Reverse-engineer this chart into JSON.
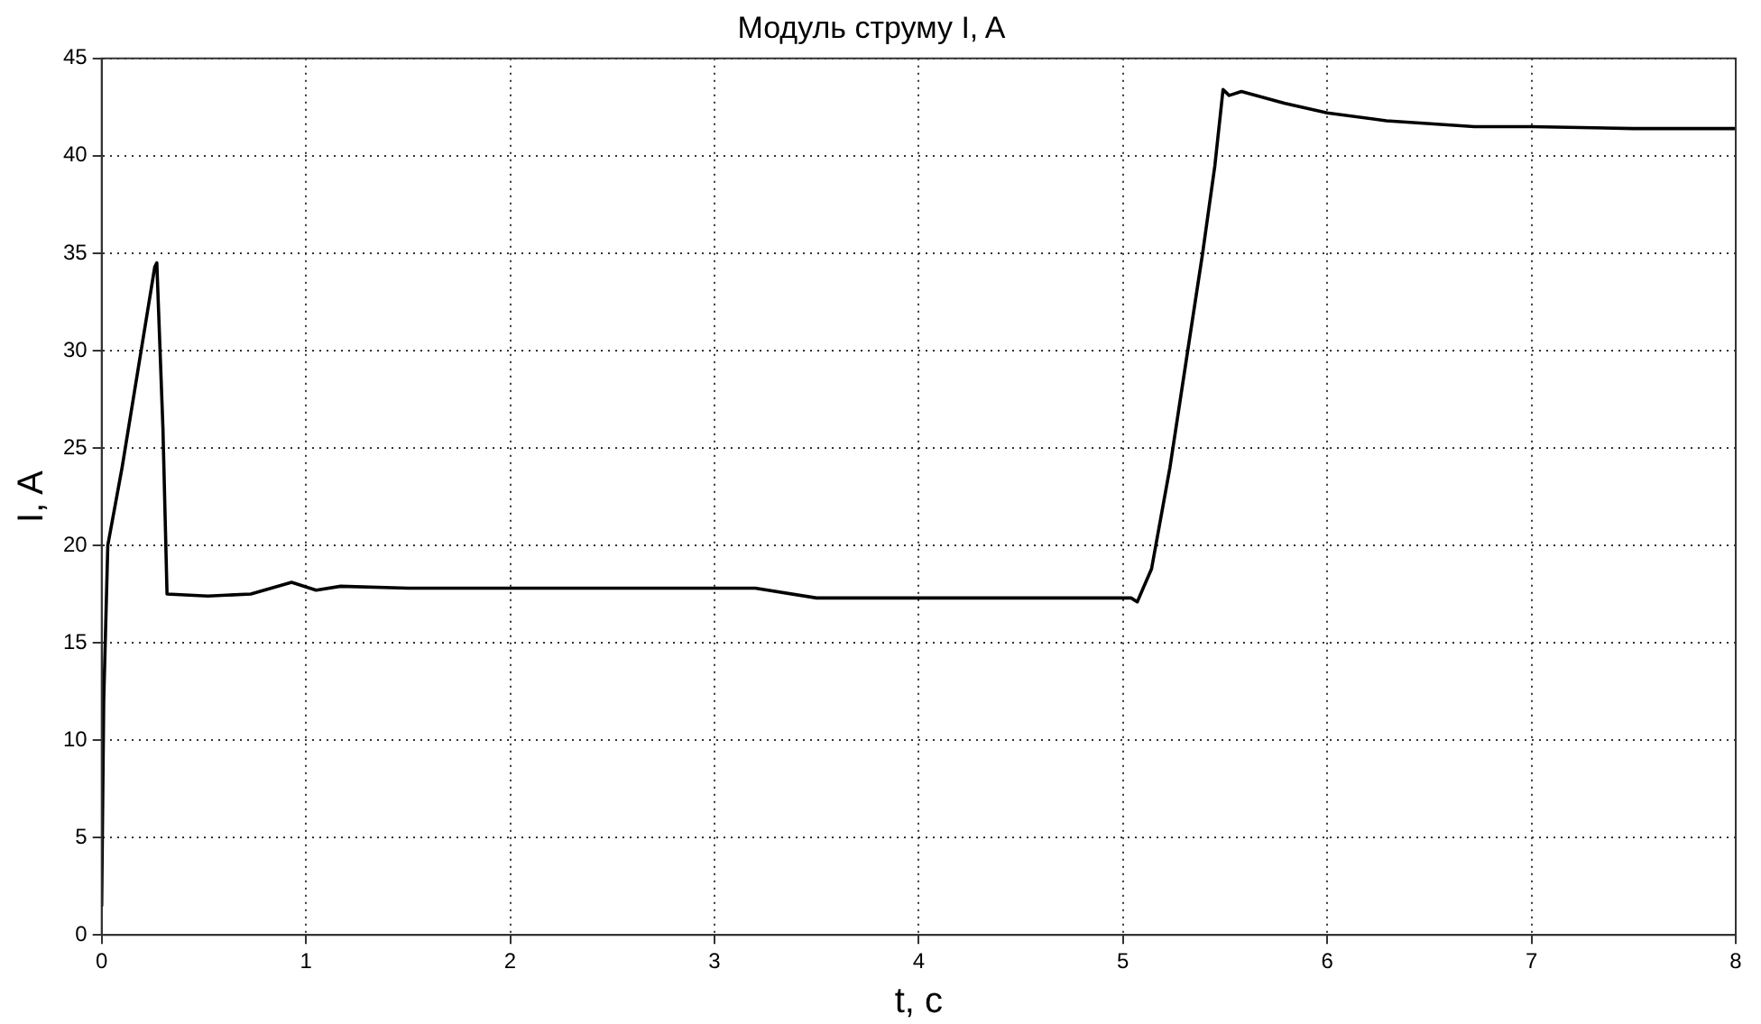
{
  "chart_data": {
    "type": "line",
    "title": "Модуль струму I, A",
    "xlabel": "t, c",
    "ylabel": "I, A",
    "series": [
      {
        "color": "#000000",
        "x": [
          0,
          0.01,
          0.03,
          0.1,
          0.26,
          0.27,
          0.3,
          0.32,
          0.52,
          0.73,
          0.93,
          1.05,
          1.17,
          1.5,
          2,
          3,
          3.2,
          3.5,
          4,
          5,
          5.04,
          5.07,
          5.14,
          5.23,
          5.32,
          5.39,
          5.45,
          5.49,
          5.52,
          5.58,
          5.79,
          6,
          6.29,
          6.72,
          7,
          7.5,
          8
        ],
        "values": [
          1.5,
          12,
          20,
          24,
          34.3,
          34.5,
          26,
          17.5,
          17.4,
          17.5,
          18.1,
          17.7,
          17.9,
          17.8,
          17.8,
          17.8,
          17.8,
          17.3,
          17.3,
          17.3,
          17.3,
          17.1,
          18.8,
          24,
          30.2,
          35,
          39.5,
          43.4,
          43.1,
          43.3,
          42.7,
          42.2,
          41.8,
          41.5,
          41.5,
          41.4,
          41.4
        ]
      }
    ],
    "xlim": [
      0,
      8
    ],
    "xticks": [
      0,
      1,
      2,
      3,
      4,
      5,
      6,
      7,
      8
    ],
    "ylim": [
      0,
      45
    ],
    "yticks": [
      0,
      5,
      10,
      15,
      20,
      25,
      30,
      35,
      40,
      45
    ],
    "grid": true,
    "legend": false,
    "marker": "none",
    "line_style": "solid"
  }
}
